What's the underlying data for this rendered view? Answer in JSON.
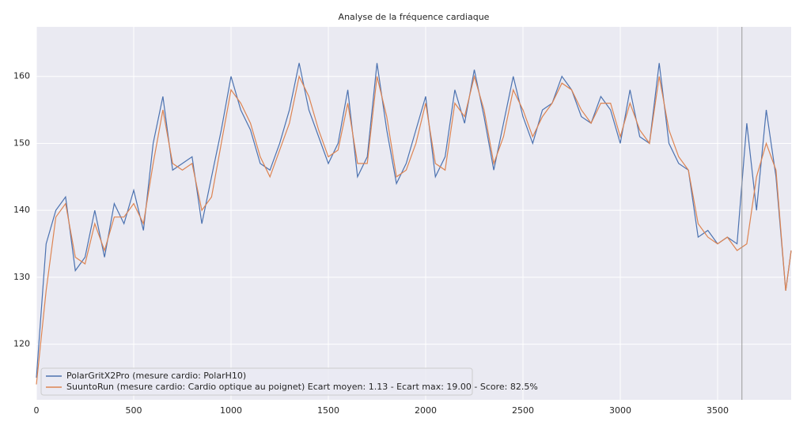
{
  "chart_data": {
    "type": "line",
    "title": "Analyse de la fréquence cardiaque",
    "x": [
      0,
      50,
      100,
      150,
      200,
      250,
      300,
      350,
      400,
      450,
      500,
      550,
      600,
      650,
      700,
      750,
      800,
      850,
      900,
      950,
      1000,
      1050,
      1100,
      1150,
      1200,
      1250,
      1300,
      1350,
      1400,
      1450,
      1500,
      1550,
      1600,
      1650,
      1700,
      1750,
      1800,
      1850,
      1900,
      1950,
      2000,
      2050,
      2100,
      2150,
      2200,
      2250,
      2300,
      2350,
      2400,
      2450,
      2500,
      2550,
      2600,
      2650,
      2700,
      2750,
      2800,
      2850,
      2900,
      2950,
      3000,
      3050,
      3100,
      3150,
      3200,
      3250,
      3300,
      3350,
      3400,
      3450,
      3500,
      3550,
      3600,
      3650,
      3700,
      3750,
      3800,
      3850,
      3878
    ],
    "series": [
      {
        "name": "PolarGritX2Pro (mesure cardio: PolarH10)",
        "color": "#4c72b0",
        "values": [
          115,
          135,
          140,
          142,
          131,
          133,
          140,
          133,
          141,
          138,
          143,
          137,
          150,
          157,
          146,
          147,
          148,
          138,
          145,
          152,
          160,
          155,
          152,
          147,
          146,
          150,
          155,
          162,
          155,
          151,
          147,
          150,
          158,
          145,
          148,
          162,
          152,
          144,
          147,
          152,
          157,
          145,
          148,
          158,
          153,
          161,
          154,
          146,
          153,
          160,
          154,
          150,
          155,
          156,
          160,
          158,
          154,
          153,
          157,
          155,
          150,
          158,
          151,
          150,
          162,
          150,
          147,
          146,
          136,
          137,
          135,
          136,
          135,
          153,
          140,
          155,
          145,
          128,
          134
        ]
      },
      {
        "name": "SuuntoRun (mesure cardio: Cardio optique au poignet) Ecart moyen: 1.13 - Ecart max: 19.00 - Score: 82.5%",
        "color": "#dd8452",
        "values": [
          114,
          128,
          139,
          141,
          133,
          132,
          138,
          134,
          139,
          139,
          141,
          138,
          147,
          155,
          147,
          146,
          147,
          140,
          142,
          150,
          158,
          156,
          153,
          148,
          145,
          149,
          153,
          160,
          157,
          152,
          148,
          149,
          156,
          147,
          147,
          160,
          154,
          145,
          146,
          150,
          156,
          147,
          146,
          156,
          154,
          160,
          155,
          147,
          151,
          158,
          155,
          151,
          154,
          156,
          159,
          158,
          155,
          153,
          156,
          156,
          151,
          156,
          152,
          150,
          160,
          152,
          148,
          146,
          138,
          136,
          135,
          136,
          134,
          135,
          145,
          150,
          146,
          128,
          134
        ]
      }
    ],
    "vline": 3625,
    "xlim": [
      0,
      3878
    ],
    "ylim": [
      111.7,
      167.4
    ],
    "xticks": [
      0,
      500,
      1000,
      1500,
      2000,
      2500,
      3000,
      3500
    ],
    "yticks": [
      120,
      130,
      140,
      150,
      160
    ],
    "grid": true,
    "legend": "lower left"
  }
}
